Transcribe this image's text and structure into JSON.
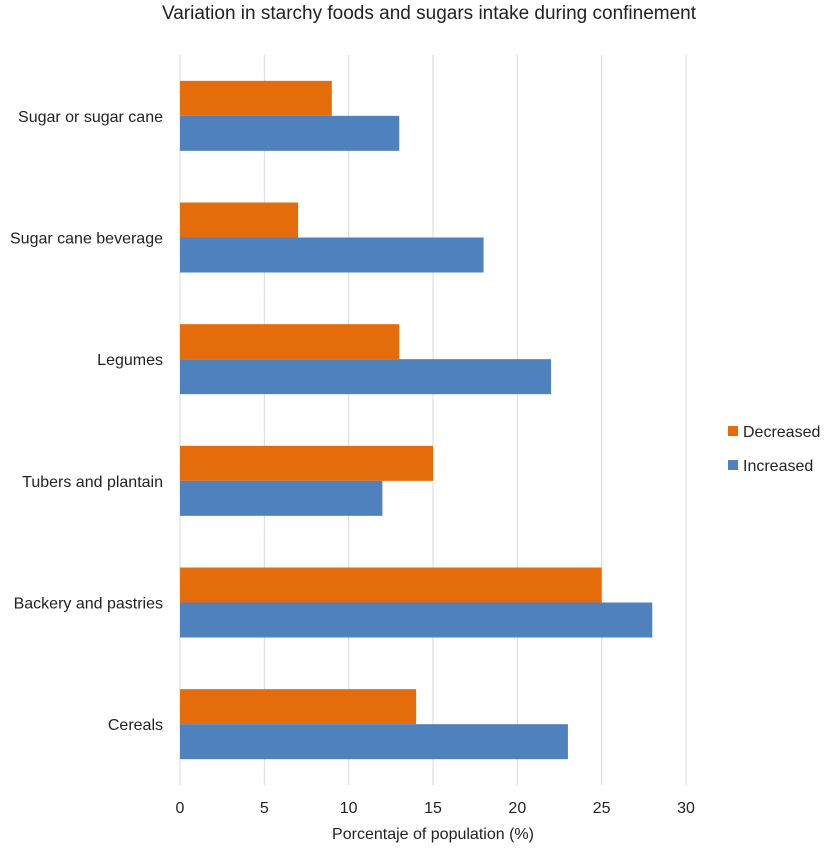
{
  "chart_data": {
    "type": "bar",
    "orientation": "horizontal",
    "title": "Variation in starchy foods and sugars intake during confinement",
    "xlabel": "Porcentaje of population (%)",
    "ylabel": "",
    "xlim": [
      0,
      30
    ],
    "xticks": [
      0,
      5,
      10,
      15,
      20,
      25,
      30
    ],
    "grid": true,
    "legend_position": "right",
    "categories": [
      "Sugar or sugar cane",
      "Sugar cane beverage",
      "Legumes",
      "Tubers and plantain",
      "Backery and pastries",
      "Cereals"
    ],
    "series": [
      {
        "name": "Decreased",
        "color": "#E46C0A",
        "values": [
          9,
          7,
          13,
          15,
          25,
          14
        ]
      },
      {
        "name": "Increased",
        "color": "#4F81BD",
        "values": [
          13,
          18,
          22,
          12,
          28,
          23
        ]
      }
    ]
  }
}
